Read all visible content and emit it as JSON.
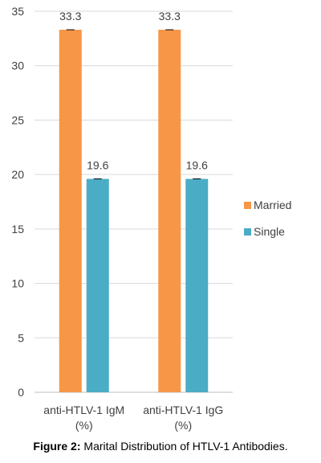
{
  "chart_data": {
    "type": "bar",
    "categories": [
      [
        "anti-HTLV-1 IgM",
        "(%)"
      ],
      [
        "anti-HTLV-1 IgG",
        "(%)"
      ]
    ],
    "series": [
      {
        "name": "Married",
        "values": [
          33.3,
          33.3
        ],
        "color": "#F79646"
      },
      {
        "name": "Single",
        "values": [
          19.6,
          19.6
        ],
        "color": "#4BACC6"
      }
    ],
    "ylim": [
      0,
      35
    ],
    "yticks": [
      0,
      5,
      10,
      15,
      20,
      25,
      30,
      35
    ],
    "grid": true,
    "legend": "right",
    "error_bars": true
  },
  "caption": {
    "label": "Figure 2:",
    "text": " Marital Distribution of HTLV-1 Antibodies."
  }
}
